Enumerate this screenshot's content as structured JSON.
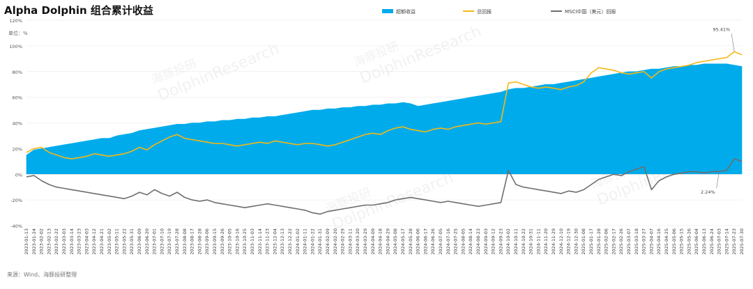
{
  "header": {
    "title": "Alpha Dolphin 组合累计收益"
  },
  "footer": {
    "source": "来源：Wind、海豚投研整理"
  },
  "watermark": {
    "text_cn": "海豚投研",
    "text_en": "DolphinResearch"
  },
  "colors": {
    "excess": "#00ABEB",
    "total": "#F5B816",
    "msci": "#6E6E6E",
    "grid": "#E6E6E6"
  },
  "chart_data": {
    "type": "area",
    "title": "Alpha Dolphin 组合累计收益",
    "ylabel": "单位：%",
    "ylim": [
      -40,
      120
    ],
    "yticks": [
      "120%",
      "100%",
      "80%",
      "60%",
      "40%",
      "20%",
      "0%",
      "-20%",
      "-40%"
    ],
    "ytick_values": [
      120,
      100,
      80,
      60,
      40,
      20,
      0,
      -20,
      -40
    ],
    "legend_position": "top-center",
    "grid": true,
    "x": [
      "2023-01-13",
      "2023-01-24",
      "2023-02-02",
      "2023-02-13",
      "2023-02-22",
      "2023-03-03",
      "2023-03-14",
      "2023-03-23",
      "2023-04-03",
      "2023-04-12",
      "2023-04-21",
      "2023-05-02",
      "2023-05-11",
      "2023-05-22",
      "2023-05-31",
      "2023-06-09",
      "2023-06-20",
      "2023-07-01",
      "2023-07-10",
      "2023-07-19",
      "2023-07-28",
      "2023-08-08",
      "2023-08-17",
      "2023-08-28",
      "2023-09-06",
      "2023-09-15",
      "2023-09-26",
      "2023-10-05",
      "2023-10-16",
      "2023-10-25",
      "2023-11-03",
      "2023-11-14",
      "2023-11-23",
      "2023-12-04",
      "2023-12-13",
      "2023-12-22",
      "2024-01-02",
      "2024-01-11",
      "2024-01-22",
      "2024-01-31",
      "2024-02-09",
      "2024-02-20",
      "2024-02-29",
      "2024-03-11",
      "2024-03-20",
      "2024-03-29",
      "2024-04-09",
      "2024-04-18",
      "2024-04-29",
      "2024-05-08",
      "2024-05-17",
      "2024-05-28",
      "2024-06-06",
      "2024-06-17",
      "2024-06-26",
      "2024-07-05",
      "2024-07-16",
      "2024-07-25",
      "2024-08-05",
      "2024-08-14",
      "2024-08-23",
      "2024-09-03",
      "2024-09-12",
      "2024-09-23",
      "2024-10-02",
      "2024-10-11",
      "2024-10-22",
      "2024-10-31",
      "2024-11-11",
      "2024-11-20",
      "2024-11-29",
      "2024-12-10",
      "2024-12-19",
      "2024-12-30",
      "2025-01-08",
      "2025-01-17",
      "2025-01-28",
      "2025-02-06",
      "2025-02-17",
      "2025-02-26",
      "2025-03-07",
      "2025-03-18",
      "2025-03-27",
      "2025-04-07",
      "2025-04-16",
      "2025-04-25",
      "2025-05-06",
      "2025-05-15",
      "2025-05-26",
      "2025-06-04",
      "2025-06-13",
      "2025-06-24",
      "2025-07-03",
      "2025-07-14",
      "2025-07-23",
      "2025-07-30"
    ],
    "series": [
      {
        "name": "超额收益",
        "type": "area",
        "values": [
          15,
          19,
          20,
          21,
          22,
          23,
          24,
          25,
          26,
          27,
          28,
          28,
          30,
          31,
          32,
          34,
          35,
          36,
          37,
          38,
          39,
          39,
          40,
          40,
          41,
          41,
          42,
          42,
          43,
          43,
          44,
          44,
          45,
          45,
          46,
          47,
          48,
          49,
          50,
          50,
          51,
          51,
          52,
          52,
          53,
          53,
          54,
          54,
          55,
          55,
          56,
          55,
          53,
          54,
          55,
          56,
          57,
          58,
          59,
          60,
          61,
          62,
          63,
          64,
          66,
          67,
          67,
          68,
          69,
          70,
          70,
          71,
          72,
          73,
          74,
          75,
          76,
          77,
          78,
          79,
          80,
          80,
          81,
          82,
          82,
          83,
          84,
          84,
          85,
          85,
          86,
          86,
          86,
          86,
          85,
          84
        ]
      },
      {
        "name": "总回报",
        "type": "line",
        "values": [
          17,
          20,
          21,
          17,
          15,
          13,
          12,
          13,
          14,
          16,
          15,
          14,
          15,
          16,
          18,
          21,
          19,
          23,
          26,
          29,
          31,
          28,
          27,
          26,
          25,
          24,
          24,
          23,
          22,
          23,
          24,
          25,
          24,
          26,
          25,
          24,
          23,
          24,
          24,
          23,
          22,
          23,
          25,
          27,
          29,
          31,
          32,
          31,
          34,
          36,
          37,
          35,
          34,
          33,
          35,
          36,
          35,
          37,
          38,
          39,
          40,
          39,
          40,
          41,
          71,
          72,
          70,
          68,
          67,
          68,
          67,
          66,
          68,
          69,
          72,
          79,
          83,
          82,
          81,
          79,
          78,
          79,
          80,
          75,
          80,
          82,
          83,
          84,
          85,
          87,
          88,
          89,
          90,
          91,
          95.41,
          93
        ]
      },
      {
        "name": "MSCI中国（美元）回报",
        "type": "line",
        "values": [
          -2,
          -1,
          -5,
          -8,
          -10,
          -11,
          -12,
          -13,
          -14,
          -15,
          -16,
          -17,
          -18,
          -19,
          -17,
          -14,
          -16,
          -12,
          -15,
          -17,
          -14,
          -18,
          -20,
          -21,
          -20,
          -22,
          -23,
          -24,
          -25,
          -26,
          -25,
          -24,
          -23,
          -24,
          -25,
          -26,
          -27,
          -28,
          -30,
          -31,
          -29,
          -28,
          -27,
          -26,
          -25,
          -24,
          -24,
          -23,
          -22,
          -20,
          -19,
          -18,
          -19,
          -20,
          -21,
          -22,
          -21,
          -22,
          -23,
          -24,
          -25,
          -24,
          -23,
          -22,
          3,
          -8,
          -10,
          -11,
          -12,
          -13,
          -14,
          -15,
          -13,
          -14,
          -12,
          -8,
          -4,
          -2,
          0,
          -1,
          2,
          4,
          6,
          -12,
          -5,
          -2,
          0,
          1,
          2,
          2,
          1,
          2,
          2.24,
          3,
          12,
          10
        ]
      }
    ],
    "annotations": [
      {
        "text": "95.41%",
        "series": "总回报",
        "x": "2025-07-23",
        "y": 95.41
      },
      {
        "text": "2.24%",
        "series": "MSCI中国（美元）回报",
        "x": "2025-07-03",
        "y": 2.24
      }
    ]
  }
}
